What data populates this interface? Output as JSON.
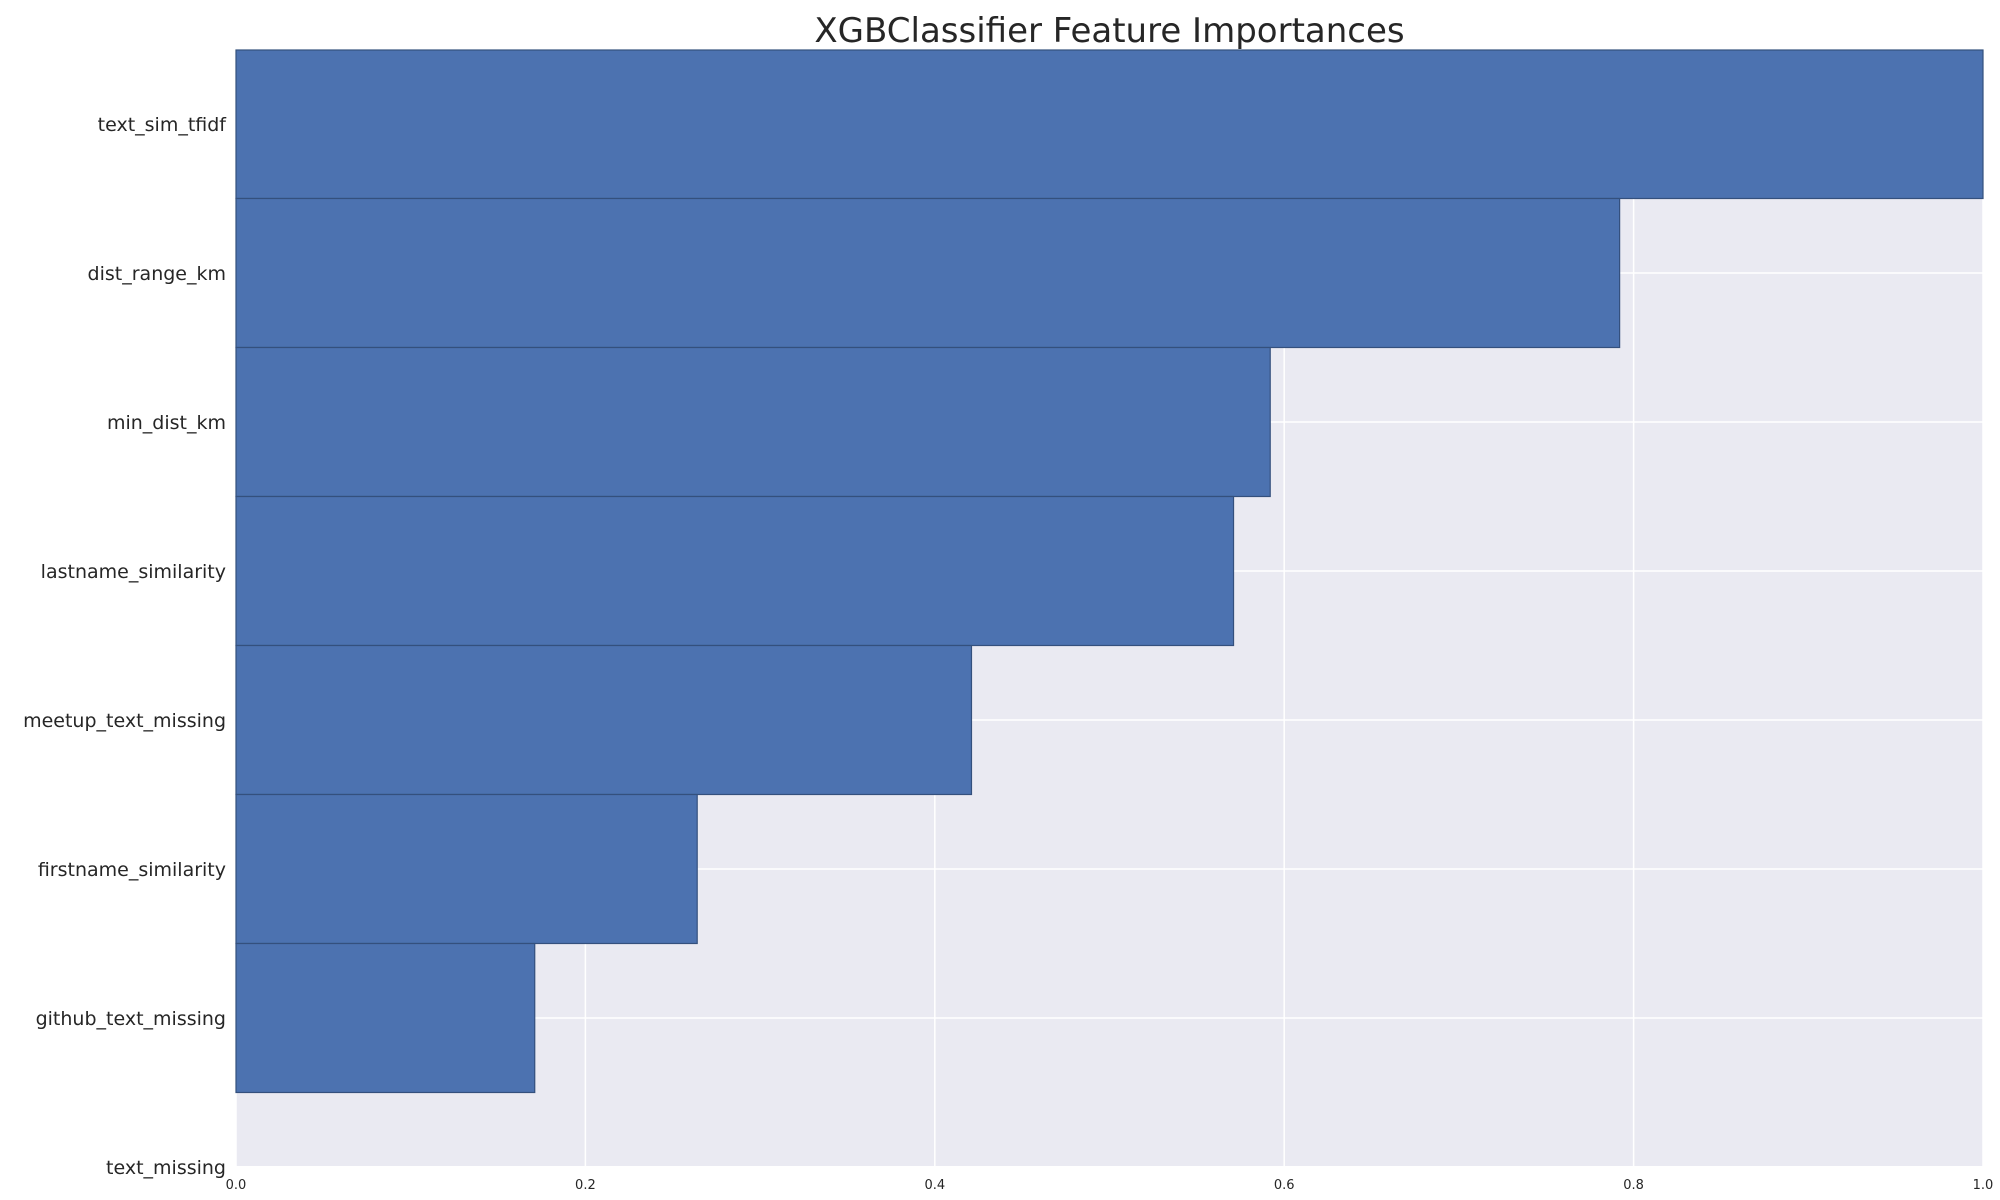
{
  "chart_data": {
    "type": "bar",
    "orientation": "horizontal",
    "title": "XGBClassifier Feature Importances",
    "xlabel": "",
    "ylabel": "",
    "categories": [
      "text_sim_tfidf",
      "dist_range_km",
      "min_dist_km",
      "lastname_similarity",
      "meetup_text_missing",
      "firstname_similarity",
      "github_text_missing",
      "text_missing"
    ],
    "values": [
      1.0,
      0.792,
      0.592,
      0.571,
      0.421,
      0.264,
      0.171,
      0.0
    ],
    "xlim": [
      0,
      1.0
    ],
    "xticks": [
      "0.0",
      "0.2",
      "0.4",
      "0.6",
      "0.8",
      "1.0"
    ],
    "grid": true,
    "legend": "none",
    "colors": {
      "bar": "#4c72b0",
      "bar_edge": "#34507d",
      "plot_background": "#eaeaf2",
      "grid": "#ffffff",
      "text": "#262626"
    }
  }
}
